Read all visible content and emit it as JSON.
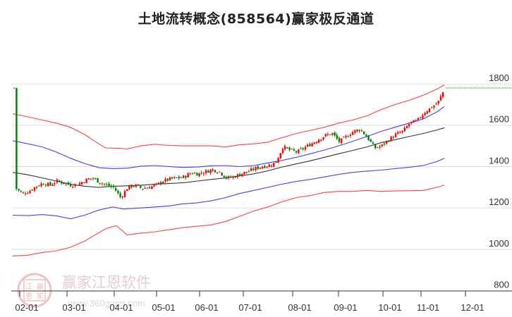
{
  "title": "土地流转概念(858564)赢家极反通道",
  "watermark": {
    "brand": "赢家江恩软件",
    "url": "www.360gann.com",
    "seal": [
      "江",
      "赢",
      "恩",
      "家"
    ]
  },
  "colors": {
    "up": "#ff0000",
    "down": "#008000",
    "outer_band": "#ff2020",
    "inner_band": "#2020ff",
    "mid_line": "#111111",
    "last_price_line": "#008000",
    "grid": "#dddddd",
    "axis": "#333333"
  },
  "chart_data": {
    "type": "candlestick",
    "title": "土地流转概念(858564)赢家极反通道",
    "xlabel": "",
    "ylabel": "",
    "ylim": [
      800,
      1800
    ],
    "yticks": [
      1800,
      1600,
      1400,
      1200,
      1000,
      800
    ],
    "xticks": [
      "02-01",
      "03-01",
      "04-01",
      "05-01",
      "06-01",
      "07-01",
      "08-01",
      "09-01",
      "10-01",
      "11-01",
      "12-01"
    ],
    "grid": "horizontal",
    "legend": null,
    "last_price_marker": 1780,
    "series": [
      {
        "name": "upper_outer_band",
        "color": "red",
        "points": [
          [
            18,
            1655
          ],
          [
            40,
            1640
          ],
          [
            60,
            1625
          ],
          [
            80,
            1610
          ],
          [
            100,
            1590
          ],
          [
            120,
            1555
          ],
          [
            140,
            1510
          ],
          [
            150,
            1490
          ],
          [
            170,
            1488
          ],
          [
            180,
            1485
          ],
          [
            200,
            1500
          ],
          [
            220,
            1508
          ],
          [
            240,
            1502
          ],
          [
            260,
            1500
          ],
          [
            280,
            1500
          ],
          [
            300,
            1500
          ],
          [
            320,
            1495
          ],
          [
            340,
            1505
          ],
          [
            360,
            1510
          ],
          [
            380,
            1518
          ],
          [
            400,
            1540
          ],
          [
            420,
            1560
          ],
          [
            440,
            1575
          ],
          [
            460,
            1590
          ],
          [
            480,
            1610
          ],
          [
            500,
            1625
          ],
          [
            520,
            1645
          ],
          [
            540,
            1675
          ],
          [
            560,
            1700
          ],
          [
            580,
            1720
          ],
          [
            600,
            1745
          ],
          [
            620,
            1775
          ],
          [
            630,
            1795
          ]
        ]
      },
      {
        "name": "upper_inner_band",
        "color": "blue",
        "points": [
          [
            18,
            1525
          ],
          [
            40,
            1510
          ],
          [
            60,
            1495
          ],
          [
            80,
            1470
          ],
          [
            100,
            1440
          ],
          [
            120,
            1415
          ],
          [
            140,
            1395
          ],
          [
            160,
            1390
          ],
          [
            180,
            1392
          ],
          [
            200,
            1402
          ],
          [
            220,
            1405
          ],
          [
            240,
            1400
          ],
          [
            260,
            1396
          ],
          [
            280,
            1398
          ],
          [
            300,
            1404
          ],
          [
            320,
            1405
          ],
          [
            340,
            1400
          ],
          [
            360,
            1405
          ],
          [
            380,
            1418
          ],
          [
            400,
            1430
          ],
          [
            420,
            1445
          ],
          [
            440,
            1462
          ],
          [
            460,
            1480
          ],
          [
            480,
            1500
          ],
          [
            500,
            1522
          ],
          [
            520,
            1545
          ],
          [
            540,
            1570
          ],
          [
            560,
            1590
          ],
          [
            580,
            1610
          ],
          [
            600,
            1630
          ],
          [
            620,
            1665
          ],
          [
            630,
            1690
          ]
        ]
      },
      {
        "name": "middle_line",
        "color": "black",
        "points": [
          [
            18,
            1372
          ],
          [
            40,
            1360
          ],
          [
            60,
            1345
          ],
          [
            80,
            1330
          ],
          [
            100,
            1315
          ],
          [
            120,
            1305
          ],
          [
            140,
            1300
          ],
          [
            160,
            1305
          ],
          [
            180,
            1307
          ],
          [
            200,
            1310
          ],
          [
            220,
            1315
          ],
          [
            240,
            1318
          ],
          [
            260,
            1322
          ],
          [
            280,
            1330
          ],
          [
            300,
            1338
          ],
          [
            320,
            1345
          ],
          [
            340,
            1355
          ],
          [
            360,
            1365
          ],
          [
            380,
            1380
          ],
          [
            400,
            1398
          ],
          [
            420,
            1413
          ],
          [
            440,
            1428
          ],
          [
            460,
            1445
          ],
          [
            480,
            1462
          ],
          [
            500,
            1478
          ],
          [
            520,
            1495
          ],
          [
            540,
            1515
          ],
          [
            560,
            1530
          ],
          [
            580,
            1545
          ],
          [
            600,
            1560
          ],
          [
            620,
            1577
          ],
          [
            630,
            1588
          ]
        ]
      },
      {
        "name": "lower_inner_band",
        "color": "blue",
        "points": [
          [
            18,
            1165
          ],
          [
            40,
            1163
          ],
          [
            60,
            1168
          ],
          [
            80,
            1162
          ],
          [
            100,
            1148
          ],
          [
            120,
            1165
          ],
          [
            140,
            1190
          ],
          [
            160,
            1205
          ],
          [
            175,
            1195
          ],
          [
            200,
            1200
          ],
          [
            220,
            1205
          ],
          [
            240,
            1210
          ],
          [
            260,
            1220
          ],
          [
            280,
            1225
          ],
          [
            300,
            1235
          ],
          [
            320,
            1250
          ],
          [
            340,
            1270
          ],
          [
            360,
            1285
          ],
          [
            380,
            1300
          ],
          [
            400,
            1315
          ],
          [
            420,
            1328
          ],
          [
            440,
            1338
          ],
          [
            460,
            1350
          ],
          [
            480,
            1362
          ],
          [
            500,
            1372
          ],
          [
            520,
            1378
          ],
          [
            540,
            1383
          ],
          [
            560,
            1390
          ],
          [
            580,
            1397
          ],
          [
            600,
            1405
          ],
          [
            620,
            1425
          ],
          [
            630,
            1440
          ]
        ]
      },
      {
        "name": "lower_outer_band",
        "color": "red",
        "points": [
          [
            18,
            968
          ],
          [
            40,
            972
          ],
          [
            60,
            985
          ],
          [
            80,
            993
          ],
          [
            100,
            1010
          ],
          [
            120,
            1040
          ],
          [
            140,
            1080
          ],
          [
            150,
            1100
          ],
          [
            165,
            1115
          ],
          [
            180,
            1070
          ],
          [
            200,
            1078
          ],
          [
            220,
            1085
          ],
          [
            240,
            1095
          ],
          [
            260,
            1105
          ],
          [
            280,
            1112
          ],
          [
            300,
            1118
          ],
          [
            320,
            1135
          ],
          [
            340,
            1160
          ],
          [
            360,
            1185
          ],
          [
            380,
            1205
          ],
          [
            400,
            1230
          ],
          [
            420,
            1250
          ],
          [
            440,
            1260
          ],
          [
            460,
            1275
          ],
          [
            480,
            1280
          ],
          [
            500,
            1280
          ],
          [
            520,
            1285
          ],
          [
            540,
            1280
          ],
          [
            560,
            1282
          ],
          [
            580,
            1283
          ],
          [
            600,
            1285
          ],
          [
            620,
            1300
          ],
          [
            630,
            1310
          ]
        ]
      },
      {
        "name": "price_close_approx",
        "color": "red/green candles",
        "points": [
          [
            20,
            1300
          ],
          [
            30,
            1270
          ],
          [
            40,
            1280
          ],
          [
            50,
            1305
          ],
          [
            60,
            1320
          ],
          [
            70,
            1310
          ],
          [
            80,
            1330
          ],
          [
            90,
            1320
          ],
          [
            100,
            1310
          ],
          [
            110,
            1315
          ],
          [
            120,
            1335
          ],
          [
            130,
            1345
          ],
          [
            140,
            1325
          ],
          [
            150,
            1310
          ],
          [
            160,
            1300
          ],
          [
            170,
            1250
          ],
          [
            180,
            1300
          ],
          [
            190,
            1310
          ],
          [
            200,
            1295
          ],
          [
            210,
            1300
          ],
          [
            220,
            1310
          ],
          [
            230,
            1330
          ],
          [
            240,
            1340
          ],
          [
            250,
            1345
          ],
          [
            260,
            1350
          ],
          [
            270,
            1370
          ],
          [
            280,
            1365
          ],
          [
            290,
            1375
          ],
          [
            300,
            1385
          ],
          [
            310,
            1375
          ],
          [
            320,
            1345
          ],
          [
            330,
            1350
          ],
          [
            340,
            1365
          ],
          [
            350,
            1375
          ],
          [
            360,
            1390
          ],
          [
            370,
            1400
          ],
          [
            380,
            1405
          ],
          [
            390,
            1420
          ],
          [
            400,
            1495
          ],
          [
            410,
            1480
          ],
          [
            420,
            1470
          ],
          [
            430,
            1490
          ],
          [
            440,
            1510
          ],
          [
            450,
            1530
          ],
          [
            460,
            1550
          ],
          [
            470,
            1560
          ],
          [
            480,
            1520
          ],
          [
            490,
            1545
          ],
          [
            500,
            1570
          ],
          [
            510,
            1580
          ],
          [
            520,
            1540
          ],
          [
            530,
            1490
          ],
          [
            540,
            1500
          ],
          [
            550,
            1530
          ],
          [
            560,
            1555
          ],
          [
            570,
            1570
          ],
          [
            580,
            1610
          ],
          [
            590,
            1620
          ],
          [
            600,
            1660
          ],
          [
            610,
            1685
          ],
          [
            620,
            1710
          ],
          [
            630,
            1780
          ]
        ]
      }
    ]
  }
}
